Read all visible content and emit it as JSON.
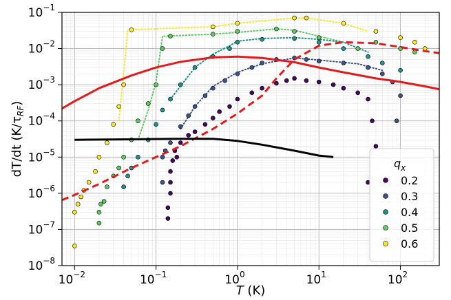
{
  "chart_data": {
    "type": "scatter",
    "xlabel_italic": "T",
    "xlabel_unit": " (K)",
    "ylabel_text": "dT/dt (K/τ",
    "ylabel_sub": "RF",
    "ylabel_close": ")",
    "x_scale": "log",
    "y_scale": "log",
    "xlim": [
      0.007,
      300
    ],
    "ylim": [
      1e-08,
      0.1
    ],
    "x_ticks": [
      {
        "value": 0.01,
        "base": "10",
        "exp": "−2"
      },
      {
        "value": 0.1,
        "base": "10",
        "exp": "−1"
      },
      {
        "value": 1,
        "base": "10",
        "exp": "0"
      },
      {
        "value": 10,
        "base": "10",
        "exp": "1"
      },
      {
        "value": 100,
        "base": "10",
        "exp": "2"
      }
    ],
    "y_ticks": [
      {
        "value": 1e-08,
        "base": "10",
        "exp": "−8"
      },
      {
        "value": 1e-07,
        "base": "10",
        "exp": "−7"
      },
      {
        "value": 1e-06,
        "base": "10",
        "exp": "−6"
      },
      {
        "value": 1e-05,
        "base": "10",
        "exp": "−5"
      },
      {
        "value": 0.0001,
        "base": "10",
        "exp": "−4"
      },
      {
        "value": 0.001,
        "base": "10",
        "exp": "−3"
      },
      {
        "value": 0.01,
        "base": "10",
        "exp": "−2"
      },
      {
        "value": 0.1,
        "base": "10",
        "exp": "−1"
      }
    ],
    "grid": true,
    "legend": {
      "title_base": "q",
      "title_sub": "x",
      "placement": "lower-right",
      "entries": [
        "0.2",
        "0.3",
        "0.4",
        "0.5",
        "0.6"
      ]
    },
    "series": [
      {
        "name": "0.2",
        "color": "#46085c",
        "points": [
          [
            0.14,
            2e-07
          ],
          [
            0.14,
            4e-07
          ],
          [
            0.15,
            1e-06
          ],
          [
            0.15,
            2e-06
          ],
          [
            0.15,
            4e-06
          ],
          [
            0.16,
            8e-06
          ],
          [
            0.17,
            1.5e-05
          ],
          [
            0.18,
            1e-05
          ],
          [
            0.2,
            2.5e-05
          ],
          [
            0.25,
            4e-05
          ],
          [
            0.3,
            5e-05
          ],
          [
            0.4,
            8e-05
          ],
          [
            0.5,
            0.00012
          ],
          [
            0.6,
            0.00018
          ],
          [
            0.8,
            0.00025
          ],
          [
            1,
            0.0004
          ],
          [
            1.5,
            0.0006
          ],
          [
            2,
            0.0008
          ],
          [
            3,
            0.0011
          ],
          [
            4,
            0.0013
          ],
          [
            5,
            0.0015
          ],
          [
            7,
            0.0013
          ],
          [
            10,
            0.0012
          ],
          [
            15,
            0.001
          ],
          [
            20,
            0.0008
          ],
          [
            30,
            0.0006
          ],
          [
            40,
            0.0004
          ],
          [
            45,
            0.0001
          ],
          [
            50,
            2e-05
          ],
          [
            40,
            2e-06
          ]
        ]
      },
      {
        "name": "0.3",
        "color": "#3b528b",
        "points": [
          [
            0.12,
            2e-06
          ],
          [
            0.12,
            1e-05
          ],
          [
            0.13,
            1.5e-05
          ],
          [
            0.15,
            2.5e-05
          ],
          [
            0.2,
            7e-05
          ],
          [
            0.25,
            0.00014
          ],
          [
            0.3,
            0.00025
          ],
          [
            0.4,
            0.0005
          ],
          [
            0.5,
            0.0008
          ],
          [
            0.7,
            0.0013
          ],
          [
            1,
            0.002
          ],
          [
            1.5,
            0.003
          ],
          [
            2,
            0.004
          ],
          [
            3,
            0.005
          ],
          [
            5,
            0.0055
          ],
          [
            7,
            0.005
          ],
          [
            10,
            0.0045
          ],
          [
            20,
            0.004
          ],
          [
            40,
            0.003
          ],
          [
            60,
            0.002
          ],
          [
            80,
            0.0012
          ],
          [
            100,
            0.0005
          ],
          [
            90,
            0.0001
          ]
        ]
      },
      {
        "name": "0.4",
        "color": "#21908d",
        "points": [
          [
            0.04,
            1.5e-06
          ],
          [
            0.045,
            3e-06
          ],
          [
            0.05,
            5e-06
          ],
          [
            0.06,
            1e-05
          ],
          [
            0.08,
            3e-05
          ],
          [
            0.1,
            8e-05
          ],
          [
            0.12,
            0.0002
          ],
          [
            0.15,
            0.0004
          ],
          [
            0.2,
            0.001
          ],
          [
            0.3,
            0.003
          ],
          [
            0.5,
            0.006
          ],
          [
            0.8,
            0.01
          ],
          [
            1,
            0.015
          ],
          [
            2,
            0.018
          ],
          [
            5,
            0.019
          ],
          [
            10,
            0.015
          ],
          [
            20,
            0.01
          ],
          [
            40,
            0.006
          ],
          [
            60,
            0.004
          ],
          [
            100,
            0.0025
          ]
        ]
      },
      {
        "name": "0.5",
        "color": "#5ec962",
        "points": [
          [
            0.02,
            1.5e-07
          ],
          [
            0.02,
            3e-07
          ],
          [
            0.021,
            5e-07
          ],
          [
            0.023,
            6e-07
          ],
          [
            0.025,
            1.5e-06
          ],
          [
            0.03,
            3e-06
          ],
          [
            0.035,
            5e-06
          ],
          [
            0.04,
            1e-05
          ],
          [
            0.05,
            3e-05
          ],
          [
            0.06,
            0.0001
          ],
          [
            0.08,
            0.0003
          ],
          [
            0.1,
            0.001
          ],
          [
            0.12,
            0.01
          ],
          [
            0.15,
            0.022
          ],
          [
            0.5,
            0.025
          ],
          [
            1,
            0.03
          ],
          [
            3,
            0.035
          ],
          [
            5,
            0.03
          ],
          [
            10,
            0.02
          ],
          [
            30,
            0.01
          ],
          [
            50,
            0.015
          ],
          [
            100,
            0.01
          ],
          [
            150,
            0.008
          ]
        ]
      },
      {
        "name": "0.6",
        "color": "#fde725",
        "points": [
          [
            0.01,
            3.5e-08
          ],
          [
            0.01,
            3e-07
          ],
          [
            0.011,
            5e-07
          ],
          [
            0.012,
            8e-07
          ],
          [
            0.013,
            1.2e-06
          ],
          [
            0.015,
            2e-06
          ],
          [
            0.018,
            4e-06
          ],
          [
            0.02,
            1e-05
          ],
          [
            0.025,
            2.5e-05
          ],
          [
            0.03,
            8e-05
          ],
          [
            0.035,
            0.00025
          ],
          [
            0.04,
            0.001
          ],
          [
            0.05,
            0.033
          ],
          [
            0.5,
            0.04
          ],
          [
            1,
            0.05
          ],
          [
            5,
            0.07
          ],
          [
            7,
            0.07
          ],
          [
            20,
            0.05
          ],
          [
            50,
            0.03
          ],
          [
            100,
            0.02
          ],
          [
            150,
            0.015
          ],
          [
            200,
            0.01
          ]
        ]
      }
    ],
    "lines": [
      {
        "name": "red-solid-curve",
        "color": "#e31a1c",
        "style": "solid",
        "points": [
          [
            0.007,
            0.00022
          ],
          [
            0.01,
            0.00035
          ],
          [
            0.02,
            0.0008
          ],
          [
            0.05,
            0.0018
          ],
          [
            0.1,
            0.003
          ],
          [
            0.2,
            0.0043
          ],
          [
            0.5,
            0.0057
          ],
          [
            1,
            0.006
          ],
          [
            2,
            0.0055
          ],
          [
            5,
            0.0042
          ],
          [
            10,
            0.003
          ],
          [
            20,
            0.0022
          ],
          [
            50,
            0.0015
          ],
          [
            100,
            0.0012
          ],
          [
            200,
            0.0009
          ],
          [
            300,
            0.00075
          ]
        ]
      },
      {
        "name": "red-dashed-curve",
        "color": "#e31a1c",
        "style": "dashed",
        "points": [
          [
            0.007,
            6.5e-07
          ],
          [
            0.01,
            9e-07
          ],
          [
            0.02,
            1.8e-06
          ],
          [
            0.05,
            5e-06
          ],
          [
            0.1,
            1e-05
          ],
          [
            0.2,
            2e-05
          ],
          [
            0.5,
            6e-05
          ],
          [
            1,
            0.00016
          ],
          [
            2,
            0.0005
          ],
          [
            3,
            0.0015
          ],
          [
            5,
            0.005
          ],
          [
            10,
            0.012
          ],
          [
            20,
            0.015
          ],
          [
            50,
            0.014
          ],
          [
            100,
            0.011
          ],
          [
            200,
            0.0085
          ],
          [
            300,
            0.0075
          ]
        ]
      },
      {
        "name": "black-solid-curve",
        "color": "#000000",
        "style": "solid",
        "points": [
          [
            0.01,
            3e-05
          ],
          [
            0.05,
            3.1e-05
          ],
          [
            0.2,
            3.2e-05
          ],
          [
            0.5,
            3.2e-05
          ],
          [
            1,
            2.8e-05
          ],
          [
            2,
            2.2e-05
          ],
          [
            5,
            1.5e-05
          ],
          [
            10,
            1.1e-05
          ],
          [
            15,
            1e-05
          ]
        ]
      }
    ],
    "dotted_connectors": [
      {
        "color": "#fde725",
        "points": [
          [
            0.035,
            0.0001
          ],
          [
            0.045,
            0.033
          ],
          [
            0.5,
            0.04
          ],
          [
            1,
            0.05
          ],
          [
            5,
            0.07
          ],
          [
            7,
            0.07
          ],
          [
            20,
            0.05
          ],
          [
            40,
            0.03
          ]
        ]
      },
      {
        "color": "#5ec962",
        "points": [
          [
            0.06,
            3e-05
          ],
          [
            0.08,
            0.0002
          ],
          [
            0.1,
            0.0012
          ],
          [
            0.12,
            0.022
          ],
          [
            0.5,
            0.025
          ],
          [
            1,
            0.028
          ],
          [
            3,
            0.035
          ],
          [
            5,
            0.032
          ],
          [
            10,
            0.022
          ],
          [
            20,
            0.015
          ]
        ]
      },
      {
        "color": "#21908d",
        "points": [
          [
            0.15,
            0.0004
          ],
          [
            0.3,
            0.003
          ],
          [
            0.5,
            0.007
          ],
          [
            0.8,
            0.012
          ],
          [
            1,
            0.016
          ],
          [
            2,
            0.019
          ],
          [
            5,
            0.02
          ],
          [
            10,
            0.018
          ],
          [
            20,
            0.015
          ],
          [
            40,
            0.008
          ]
        ]
      },
      {
        "color": "#3b528b",
        "points": [
          [
            0.2,
            6e-05
          ],
          [
            0.3,
            0.00025
          ],
          [
            0.5,
            0.0009
          ],
          [
            1,
            0.0022
          ],
          [
            2,
            0.0038
          ],
          [
            5,
            0.0055
          ],
          [
            10,
            0.0048
          ],
          [
            30,
            0.0038
          ],
          [
            60,
            0.0025
          ]
        ]
      }
    ]
  }
}
